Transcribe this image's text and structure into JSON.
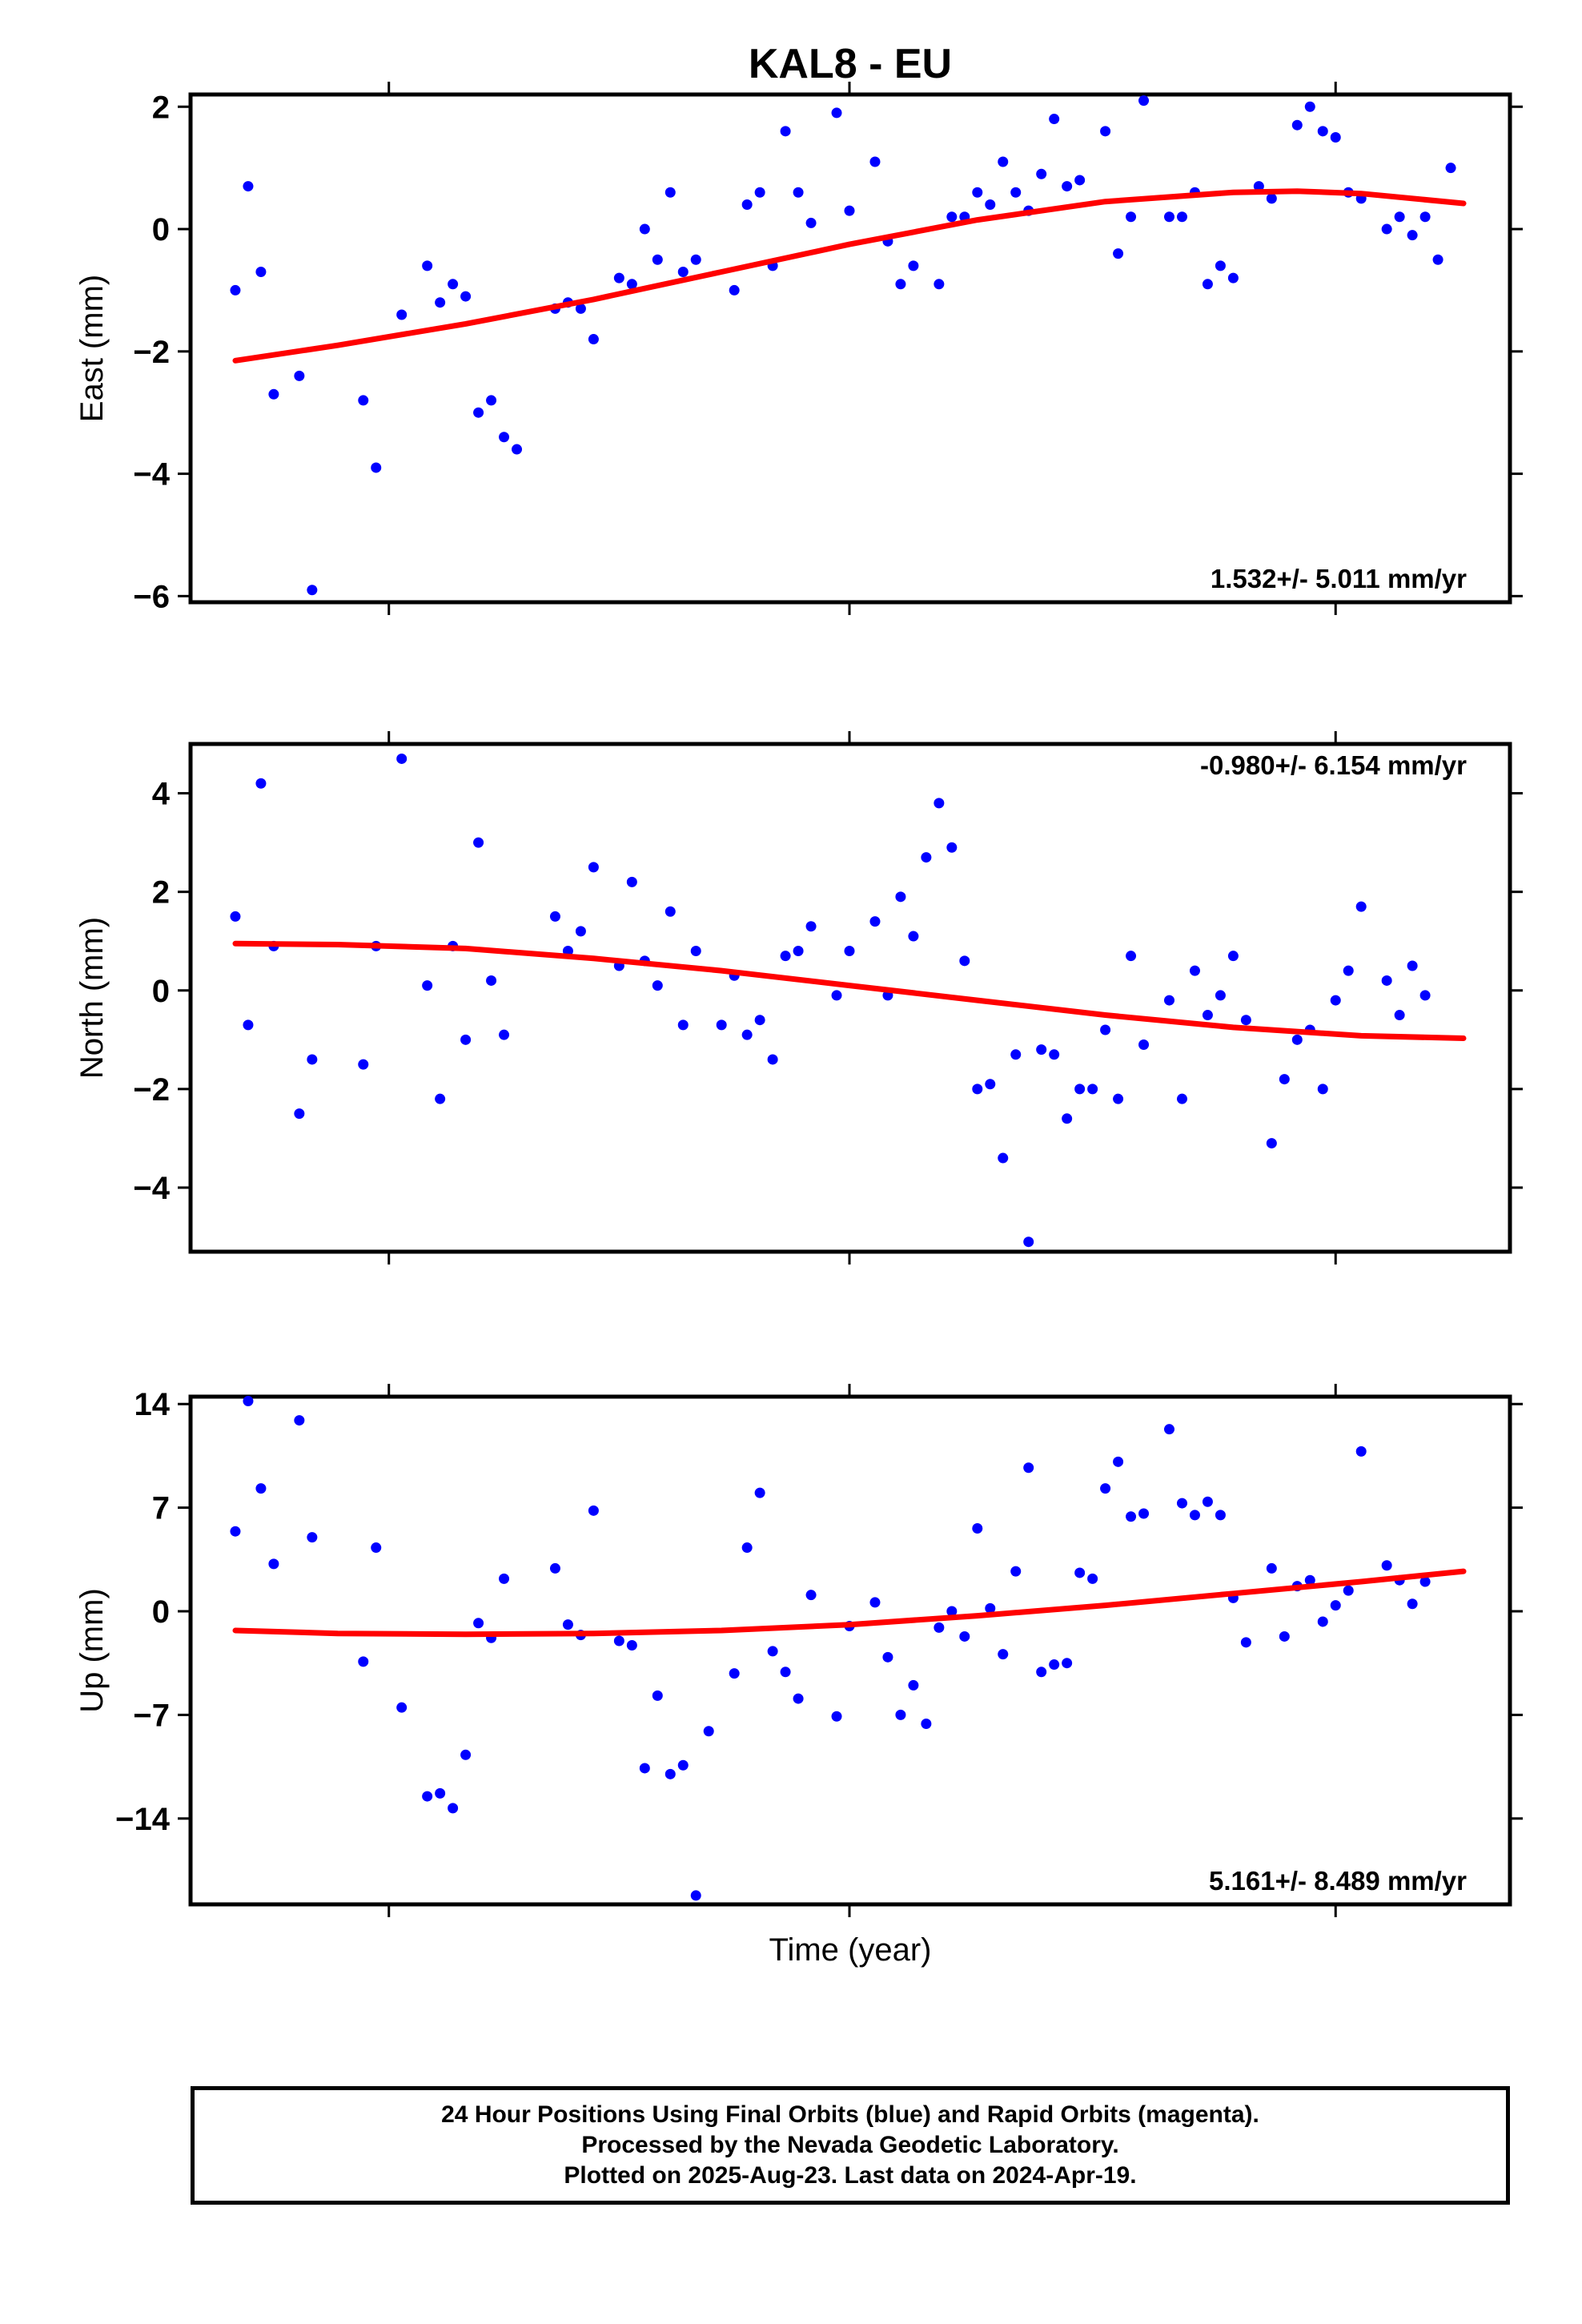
{
  "title": "KAL8 - EU",
  "xlabel": "Time (year)",
  "colors": {
    "points": "#0000ff",
    "fit": "#ff0000",
    "frame": "#000000"
  },
  "footer": {
    "lines": [
      "24 Hour Positions Using Final Orbits (blue) and Rapid Orbits (magenta).",
      "Processed by the Nevada Geodetic Laboratory.",
      "Plotted on 2025-Aug-23. Last data on 2024-Apr-19."
    ]
  },
  "chart_data": [
    {
      "type": "scatter",
      "id": "east",
      "title": "KAL8 - EU",
      "ylabel": "East (mm)",
      "xlabel": "",
      "ylim": [
        -6.1,
        2.2
      ],
      "yticks": [
        2,
        0,
        -2,
        -4,
        -6
      ],
      "ytick_labels": [
        "2",
        "0",
        "−2",
        "−4",
        "−6"
      ],
      "rate_label": "1.532+/- 5.011 mm/yr",
      "rate_position": "bottom-right",
      "series": [
        {
          "kind": "points",
          "color": "#0000ff",
          "x": [
            0.02,
            0.03,
            0.04,
            0.05,
            0.07,
            0.08,
            0.12,
            0.13,
            0.15,
            0.17,
            0.18,
            0.19,
            0.2,
            0.21,
            0.22,
            0.23,
            0.24,
            0.27,
            0.28,
            0.29,
            0.3,
            0.32,
            0.33,
            0.34,
            0.35,
            0.36,
            0.37,
            0.38,
            0.41,
            0.42,
            0.43,
            0.44,
            0.45,
            0.46,
            0.47,
            0.49,
            0.5,
            0.52,
            0.53,
            0.54,
            0.55,
            0.57,
            0.58,
            0.59,
            0.6,
            0.61,
            0.62,
            0.63,
            0.64,
            0.65,
            0.66,
            0.67,
            0.68,
            0.7,
            0.71,
            0.72,
            0.73,
            0.75,
            0.76,
            0.77,
            0.78,
            0.79,
            0.8,
            0.82,
            0.83,
            0.85,
            0.86,
            0.87,
            0.88,
            0.89,
            0.9,
            0.92,
            0.93,
            0.94,
            0.95,
            0.96,
            0.97
          ],
          "y": [
            -1.0,
            0.7,
            -0.7,
            -2.7,
            -2.4,
            -5.9,
            -2.8,
            -3.9,
            -1.4,
            -0.6,
            -1.2,
            -0.9,
            -1.1,
            -3.0,
            -2.8,
            -3.4,
            -3.6,
            -1.3,
            -1.2,
            -1.3,
            -1.8,
            -0.8,
            -0.9,
            0.0,
            -0.5,
            0.6,
            -0.7,
            -0.5,
            -1.0,
            0.4,
            0.6,
            -0.6,
            1.6,
            0.6,
            0.1,
            1.9,
            0.3,
            1.1,
            -0.2,
            -0.9,
            -0.6,
            -0.9,
            0.2,
            0.2,
            0.6,
            0.4,
            1.1,
            0.6,
            0.3,
            0.9,
            1.8,
            0.7,
            0.8,
            1.6,
            -0.4,
            0.2,
            2.1,
            0.2,
            0.2,
            0.6,
            -0.9,
            -0.6,
            -0.8,
            0.7,
            0.5,
            1.7,
            2.0,
            1.6,
            1.5,
            0.6,
            0.5,
            0.0,
            0.2,
            -0.1,
            0.2,
            -0.5,
            1.0
          ]
        },
        {
          "kind": "fit",
          "color": "#ff0000",
          "x": [
            0.02,
            0.1,
            0.2,
            0.3,
            0.4,
            0.5,
            0.6,
            0.7,
            0.8,
            0.85,
            0.9,
            0.98
          ],
          "y": [
            -2.15,
            -1.9,
            -1.55,
            -1.15,
            -0.7,
            -0.25,
            0.15,
            0.45,
            0.6,
            0.62,
            0.58,
            0.42
          ]
        }
      ]
    },
    {
      "type": "scatter",
      "id": "north",
      "ylabel": "North (mm)",
      "xlabel": "",
      "ylim": [
        -5.3,
        5.0
      ],
      "yticks": [
        4,
        2,
        0,
        -2,
        -4
      ],
      "ytick_labels": [
        "4",
        "2",
        "0",
        "−2",
        "−4"
      ],
      "rate_label": "-0.980+/- 6.154 mm/yr",
      "rate_position": "top-right",
      "series": [
        {
          "kind": "points",
          "color": "#0000ff",
          "x": [
            0.02,
            0.03,
            0.04,
            0.05,
            0.07,
            0.08,
            0.12,
            0.13,
            0.15,
            0.17,
            0.18,
            0.19,
            0.2,
            0.21,
            0.22,
            0.23,
            0.27,
            0.28,
            0.29,
            0.3,
            0.32,
            0.33,
            0.34,
            0.35,
            0.36,
            0.37,
            0.38,
            0.4,
            0.41,
            0.42,
            0.43,
            0.44,
            0.45,
            0.46,
            0.47,
            0.49,
            0.5,
            0.52,
            0.53,
            0.54,
            0.55,
            0.56,
            0.57,
            0.58,
            0.59,
            0.6,
            0.61,
            0.62,
            0.63,
            0.64,
            0.65,
            0.66,
            0.67,
            0.68,
            0.69,
            0.7,
            0.71,
            0.72,
            0.73,
            0.75,
            0.76,
            0.77,
            0.78,
            0.79,
            0.8,
            0.81,
            0.83,
            0.84,
            0.85,
            0.86,
            0.87,
            0.88,
            0.89,
            0.9,
            0.92,
            0.93,
            0.94,
            0.95
          ],
          "y": [
            1.5,
            -0.7,
            4.2,
            0.9,
            -2.5,
            -1.4,
            -1.5,
            0.9,
            4.7,
            0.1,
            -2.2,
            0.9,
            -1.0,
            3.0,
            0.2,
            -0.9,
            1.5,
            0.8,
            1.2,
            2.5,
            0.5,
            2.2,
            0.6,
            0.1,
            1.6,
            -0.7,
            0.8,
            -0.7,
            0.3,
            -0.9,
            -0.6,
            -1.4,
            0.7,
            0.8,
            1.3,
            -0.1,
            0.8,
            1.4,
            -0.1,
            1.9,
            1.1,
            2.7,
            3.8,
            2.9,
            0.6,
            -2.0,
            -1.9,
            -3.4,
            -1.3,
            -5.1,
            -1.2,
            -1.3,
            -2.6,
            -2.0,
            -2.0,
            -0.8,
            -2.2,
            0.7,
            -1.1,
            -0.2,
            -2.2,
            0.4,
            -0.5,
            -0.1,
            0.7,
            -0.6,
            -3.1,
            -1.8,
            -1.0,
            -0.8,
            -2.0,
            -0.2,
            0.4,
            1.7,
            0.2,
            -0.5,
            0.5,
            -0.1
          ]
        },
        {
          "kind": "fit",
          "color": "#ff0000",
          "x": [
            0.02,
            0.1,
            0.2,
            0.3,
            0.4,
            0.5,
            0.6,
            0.7,
            0.8,
            0.9,
            0.98
          ],
          "y": [
            0.95,
            0.93,
            0.85,
            0.65,
            0.4,
            0.1,
            -0.2,
            -0.5,
            -0.75,
            -0.92,
            -0.97
          ]
        }
      ]
    },
    {
      "type": "scatter",
      "id": "up",
      "ylabel": "Up (mm)",
      "xlabel": "Time (year)",
      "ylim": [
        -19.8,
        14.5
      ],
      "yticks": [
        14,
        7,
        0,
        -7,
        -14
      ],
      "ytick_labels": [
        "14",
        "7",
        "0",
        "−7",
        "−14"
      ],
      "rate_label": "5.161+/- 8.489 mm/yr",
      "rate_position": "bottom-right",
      "series": [
        {
          "kind": "points",
          "color": "#0000ff",
          "x": [
            0.02,
            0.03,
            0.04,
            0.05,
            0.07,
            0.08,
            0.12,
            0.13,
            0.15,
            0.17,
            0.18,
            0.19,
            0.2,
            0.21,
            0.22,
            0.23,
            0.27,
            0.28,
            0.29,
            0.3,
            0.32,
            0.33,
            0.34,
            0.35,
            0.36,
            0.37,
            0.38,
            0.39,
            0.41,
            0.42,
            0.43,
            0.44,
            0.45,
            0.46,
            0.47,
            0.49,
            0.5,
            0.52,
            0.53,
            0.54,
            0.55,
            0.56,
            0.57,
            0.58,
            0.59,
            0.6,
            0.61,
            0.62,
            0.63,
            0.64,
            0.65,
            0.66,
            0.67,
            0.68,
            0.69,
            0.7,
            0.71,
            0.72,
            0.73,
            0.75,
            0.76,
            0.77,
            0.78,
            0.79,
            0.8,
            0.81,
            0.83,
            0.84,
            0.85,
            0.86,
            0.87,
            0.88,
            0.89,
            0.9,
            0.92,
            0.93,
            0.94,
            0.95
          ],
          "y": [
            5.4,
            14.2,
            8.3,
            3.2,
            12.9,
            5.0,
            -3.4,
            4.3,
            -6.5,
            -12.5,
            -12.3,
            -13.3,
            -9.7,
            -0.8,
            -1.8,
            2.2,
            2.9,
            -0.9,
            -1.6,
            6.8,
            -2.0,
            -2.3,
            -10.6,
            -5.7,
            -11.0,
            -10.4,
            -19.2,
            -8.1,
            -4.2,
            4.3,
            8.0,
            -2.7,
            -4.1,
            -5.9,
            1.1,
            -7.1,
            -1.0,
            0.6,
            -3.1,
            -7.0,
            -5.0,
            -7.6,
            -1.1,
            0.0,
            -1.7,
            5.6,
            0.2,
            -2.9,
            2.7,
            9.7,
            -4.1,
            -3.6,
            -3.5,
            2.6,
            2.2,
            8.3,
            10.1,
            6.4,
            6.6,
            12.3,
            7.3,
            6.5,
            7.4,
            6.5,
            0.9,
            -2.1,
            2.9,
            -1.7,
            1.7,
            2.1,
            -0.7,
            0.4,
            1.4,
            10.8,
            3.1,
            2.1,
            0.5,
            2.0
          ]
        },
        {
          "kind": "fit",
          "color": "#ff0000",
          "x": [
            0.02,
            0.1,
            0.2,
            0.3,
            0.4,
            0.5,
            0.6,
            0.7,
            0.8,
            0.9,
            0.98
          ],
          "y": [
            -1.3,
            -1.5,
            -1.55,
            -1.5,
            -1.3,
            -0.9,
            -0.3,
            0.4,
            1.2,
            2.0,
            2.7
          ]
        }
      ]
    }
  ]
}
